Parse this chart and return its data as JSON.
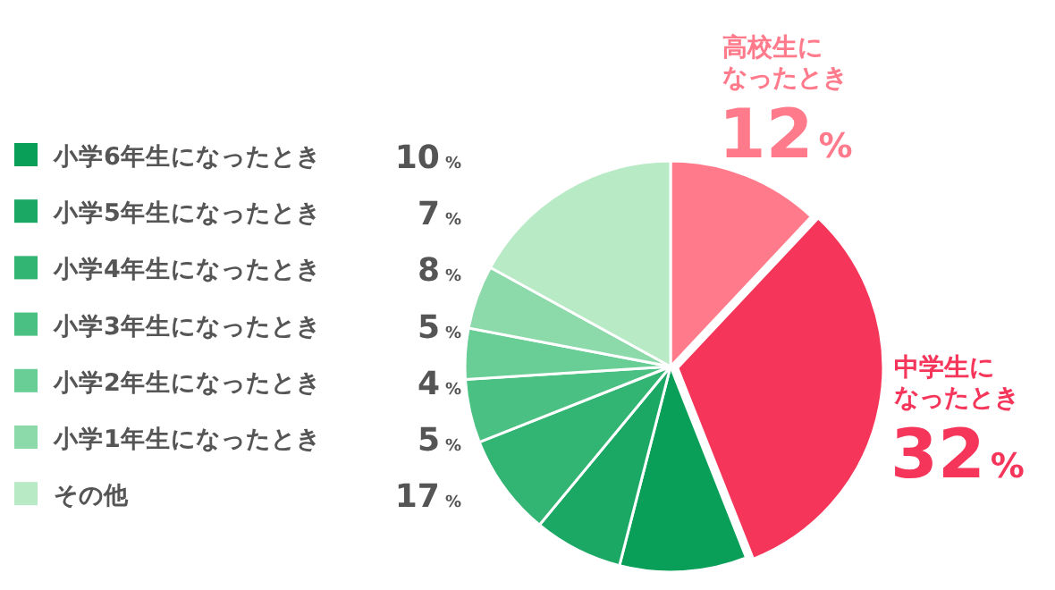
{
  "chart_data": {
    "type": "pie",
    "categories": [
      "高校生になったとき",
      "中学生になったとき",
      "小学6年生になったとき",
      "小学5年生になったとき",
      "小学4年生になったとき",
      "小学3年生になったとき",
      "小学2年生になったとき",
      "小学1年生になったとき",
      "その他"
    ],
    "values": [
      12,
      32,
      10,
      7,
      8,
      5,
      4,
      5,
      17
    ],
    "colors": [
      "#ff7b8c",
      "#f5365a",
      "#0a9f58",
      "#1aa864",
      "#32b472",
      "#4bc083",
      "#69cd96",
      "#8cd9aa",
      "#b8eac6"
    ],
    "value_labels": [
      "12%",
      "32%",
      "10%",
      "7%",
      "8%",
      "5%",
      "4%",
      "5%",
      "17%"
    ],
    "legend": "left"
  }
}
